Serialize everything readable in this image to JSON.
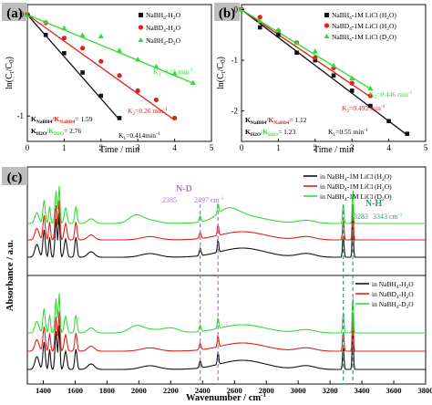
{
  "colors": {
    "black": "#111111",
    "red": "#e0201b",
    "green": "#33dd33",
    "purple": "#b36be0",
    "teal": "#2f9e6f",
    "panel_label_bg": "#bdbdbd"
  },
  "chart_data": [
    {
      "panel": "(a)",
      "type": "scatter",
      "xlabel": "Time / min",
      "ylabel": "ln(Ct/C0)",
      "xlim": [
        0,
        5
      ],
      "ylim": [
        -1.25,
        0.1
      ],
      "xticks": [
        "0",
        "1",
        "2",
        "3",
        "4",
        "5"
      ],
      "yticks": [
        "0",
        "-1"
      ],
      "legend_position": "top-right",
      "series": [
        {
          "name": "NaBH4-H2O",
          "color": "black",
          "marker": "square",
          "x": [
            0,
            0.5,
            1,
            1.5,
            2,
            2.5
          ],
          "y": [
            0,
            -0.2,
            -0.38,
            -0.57,
            -0.8,
            -1.02
          ],
          "fit_slope": -0.414
        },
        {
          "name": "NaBD4-H2O",
          "color": "red",
          "marker": "circle",
          "x": [
            0,
            0.5,
            1,
            1.5,
            2,
            2.5,
            3,
            3.5,
            4
          ],
          "y": [
            0,
            -0.08,
            -0.23,
            -0.33,
            -0.46,
            -0.6,
            -0.75,
            -0.84,
            -1.02
          ],
          "fit_slope": -0.26
        },
        {
          "name": "NaBH4-D2O",
          "color": "green",
          "marker": "triangle",
          "x": [
            0,
            0.5,
            1,
            1.5,
            2,
            2.5,
            3,
            3.5,
            4,
            4.5
          ],
          "y": [
            0,
            -0.07,
            -0.13,
            -0.2,
            -0.21,
            -0.35,
            -0.44,
            -0.51,
            -0.58,
            -0.67
          ],
          "fit_slope": -0.15
        }
      ],
      "annotations": {
        "k1": "K1=0.414min-1",
        "k2": "K2=0.26 min-1",
        "k3": "K3=0.15 min-1",
        "ratio1_lbl_a": "KNaBH4",
        "ratio1_lbl_b": "KNaBD4",
        "ratio1_val": "= 1.59",
        "ratio2_lbl_a": "KH2O",
        "ratio2_lbl_b": "KD2O",
        "ratio2_val": "= 2.76"
      }
    },
    {
      "panel": "(b)",
      "type": "scatter",
      "xlabel": "Time / min",
      "ylabel": "ln(Ct/C0)",
      "xlim": [
        0,
        5
      ],
      "ylim": [
        -2.6,
        0.1
      ],
      "xticks": [
        "0",
        "1",
        "2",
        "3",
        "4",
        "5"
      ],
      "yticks": [
        "0",
        "-1",
        "-2"
      ],
      "legend_position": "top-right",
      "series": [
        {
          "name": "NaBH4-1M LiCl (H2O)",
          "color": "black",
          "marker": "square",
          "x": [
            0,
            0.5,
            1,
            1.5,
            2,
            2.5,
            3,
            3.5,
            4,
            4.5
          ],
          "y": [
            0,
            -0.35,
            -0.5,
            -0.85,
            -1.0,
            -1.3,
            -1.6,
            -1.9,
            -2.2,
            -2.45
          ],
          "fit_slope": -0.55
        },
        {
          "name": "NaBD4-1M LiCl (H2O)",
          "color": "red",
          "marker": "circle",
          "x": [
            0,
            0.5,
            1,
            1.5,
            2,
            2.5,
            3,
            3.5
          ],
          "y": [
            0,
            -0.15,
            -0.42,
            -0.65,
            -0.95,
            -1.15,
            -1.45,
            -1.7
          ],
          "fit_slope": -0.492
        },
        {
          "name": "NaBH4-1M LiCl (D2O)",
          "color": "green",
          "marker": "triangle",
          "x": [
            0,
            0.5,
            1,
            1.5,
            2,
            2.5,
            3,
            3.5
          ],
          "y": [
            0,
            -0.22,
            -0.4,
            -0.65,
            -0.82,
            -1.1,
            -1.35,
            -1.55
          ],
          "fit_slope": -0.446
        }
      ],
      "annotations": {
        "k1": "K1=0.55 min-1",
        "k2": "K2=0.492 min-1",
        "k3": "K3=0.446 min-1",
        "ratio1_lbl_a": "KNaBH4",
        "ratio1_lbl_b": "KNaBD4",
        "ratio1_val": "= 1.12",
        "ratio2_lbl_a": "KH2O",
        "ratio2_lbl_b": "KD2O",
        "ratio2_val": "= 1.23"
      }
    },
    {
      "panel": "(c)",
      "type": "line",
      "xlabel": "Wavenumber / cm-1",
      "ylabel": "Absorbance / a.u.",
      "xlim": [
        1300,
        3800
      ],
      "xticks": [
        "1400",
        "1600",
        "1800",
        "2000",
        "2200",
        "2400",
        "2600",
        "2800",
        "3000",
        "3200",
        "3400",
        "3600",
        "3800"
      ],
      "legends": [
        {
          "position": "top-right",
          "entries": [
            {
              "label": "in NaBH4-1M LiCl (H2O)",
              "color": "black"
            },
            {
              "label": "in NaBD4-1M LiCl (H2O)",
              "color": "red"
            },
            {
              "label": "in NaBH4-1M LiCl (D2O)",
              "color": "green"
            }
          ]
        },
        {
          "position": "right-middle",
          "entries": [
            {
              "label": "in NaBH4-H2O",
              "color": "black"
            },
            {
              "label": "in NaBD4-H2O",
              "color": "red"
            },
            {
              "label": "in NaBH4-D2O",
              "color": "green"
            }
          ]
        }
      ],
      "markers": [
        {
          "x": 2385,
          "label": "2385",
          "color": "purple"
        },
        {
          "x": 2497,
          "label": "2497 cm-1",
          "color": "purple"
        },
        {
          "x": 3283,
          "label": "3283",
          "color": "teal"
        },
        {
          "x": 3343,
          "label": "3343 cm-1",
          "color": "teal"
        }
      ],
      "region_labels": {
        "nd": "N-D",
        "nh": "N-H"
      }
    }
  ]
}
